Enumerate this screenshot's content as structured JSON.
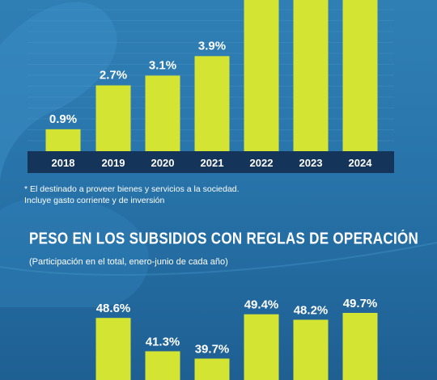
{
  "chart_data": [
    {
      "type": "bar",
      "categories": [
        "2018",
        "2019",
        "2020",
        "2021",
        "2022",
        "2023",
        "2024"
      ],
      "values": [
        0.9,
        2.7,
        3.1,
        3.9,
        null,
        null,
        null
      ],
      "data_labels": [
        "0.9%",
        "2.7%",
        "3.1%",
        "3.9%",
        "",
        "",
        ""
      ],
      "bar_color": "#d4e432",
      "axis_band_color": "#15345a",
      "title": "",
      "ylim": [
        0,
        6.2
      ],
      "legend": "none",
      "grid": false
    },
    {
      "type": "bar",
      "categories": [
        "",
        "",
        "",
        "",
        "",
        "",
        ""
      ],
      "values": [
        null,
        48.6,
        41.3,
        39.7,
        49.4,
        48.2,
        49.7
      ],
      "data_labels": [
        "",
        "48.6%",
        "41.3%",
        "39.7%",
        "49.4%",
        "48.2%",
        "49.7%"
      ],
      "bar_color": "#d4e432",
      "title": "PESO EN LOS SUBSIDIOS CON REGLAS DE OPERACIÓN",
      "subtitle": "(Participación en el total, enero-junio de cada año)",
      "ylim": [
        30,
        52
      ],
      "legend": "none",
      "grid": false
    }
  ],
  "notes": {
    "line1": "* El destinado a proveer bienes y servicios a la sociedad.",
    "line2": "Incluye gasto corriente y de inversión"
  }
}
